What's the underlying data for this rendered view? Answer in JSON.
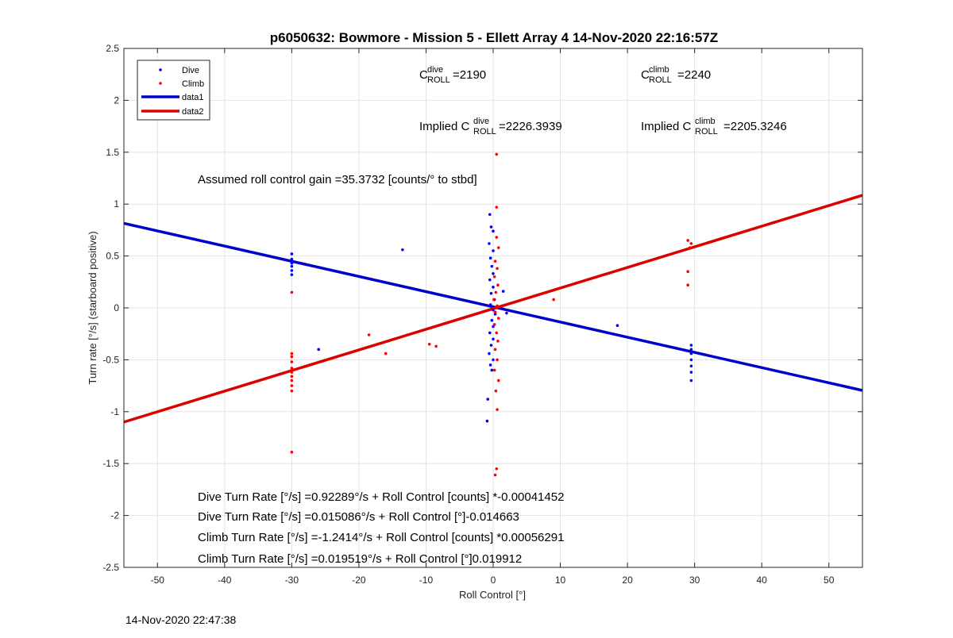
{
  "chart_data": {
    "type": "scatter",
    "title": "p6050632: Bowmore - Mission 5 - Ellett Array 4 14-Nov-2020 22:16:57Z",
    "xlabel": "Roll Control [°]",
    "ylabel": "Turn rate [°/s] (starboard positive)",
    "xlim": [
      -55,
      55
    ],
    "ylim": [
      -2.5,
      2.5
    ],
    "xticks": [
      -50,
      -40,
      -30,
      -20,
      -10,
      0,
      10,
      20,
      30,
      40,
      50
    ],
    "yticks": [
      -2.5,
      -2,
      -1.5,
      -1,
      -0.5,
      0,
      0.5,
      1,
      1.5,
      2,
      2.5
    ],
    "grid": true,
    "legend_position": "top-left",
    "legend": [
      "Dive",
      "Climb",
      "data1",
      "data2"
    ],
    "series": [
      {
        "name": "Dive",
        "kind": "points",
        "color": "#0000ff",
        "points": [
          [
            -30,
            0.52
          ],
          [
            -30,
            0.47
          ],
          [
            -30,
            0.43
          ],
          [
            -30,
            0.4
          ],
          [
            -30,
            0.36
          ],
          [
            -30,
            0.32
          ],
          [
            -26,
            -0.4
          ],
          [
            -13.5,
            0.56
          ],
          [
            -0.5,
            0.9
          ],
          [
            -0.3,
            0.78
          ],
          [
            0,
            0.74
          ],
          [
            -0.6,
            0.62
          ],
          [
            0,
            0.55
          ],
          [
            -0.4,
            0.48
          ],
          [
            -0.2,
            0.4
          ],
          [
            0,
            0.33
          ],
          [
            -0.5,
            0.27
          ],
          [
            0,
            0.2
          ],
          [
            -0.3,
            0.14
          ],
          [
            0.2,
            0.08
          ],
          [
            -0.4,
            0.03
          ],
          [
            0,
            -0.02
          ],
          [
            0.3,
            -0.06
          ],
          [
            -0.2,
            -0.12
          ],
          [
            0,
            -0.18
          ],
          [
            -0.5,
            -0.24
          ],
          [
            0,
            -0.3
          ],
          [
            -0.3,
            -0.36
          ],
          [
            -0.6,
            -0.44
          ],
          [
            0,
            -0.5
          ],
          [
            -0.4,
            -0.55
          ],
          [
            -0.2,
            -0.6
          ],
          [
            -0.8,
            -0.88
          ],
          [
            -0.9,
            -1.09
          ],
          [
            1.5,
            0.16
          ],
          [
            2,
            -0.05
          ],
          [
            18.5,
            -0.17
          ],
          [
            29.5,
            -0.36
          ],
          [
            29.5,
            -0.4
          ],
          [
            29.5,
            -0.44
          ],
          [
            29.5,
            -0.5
          ],
          [
            29.5,
            -0.56
          ],
          [
            29.5,
            -0.62
          ],
          [
            29.5,
            -0.7
          ]
        ]
      },
      {
        "name": "Climb",
        "kind": "points",
        "color": "#ff0000",
        "points": [
          [
            -30,
            0.15
          ],
          [
            -30,
            -0.44
          ],
          [
            -30,
            -0.47
          ],
          [
            -30,
            -0.52
          ],
          [
            -30,
            -0.58
          ],
          [
            -30,
            -0.62
          ],
          [
            -30,
            -0.66
          ],
          [
            -30,
            -0.7
          ],
          [
            -30,
            -0.75
          ],
          [
            -30,
            -0.8
          ],
          [
            -30,
            -1.39
          ],
          [
            -18.5,
            -0.26
          ],
          [
            -16,
            -0.44
          ],
          [
            -9.5,
            -0.35
          ],
          [
            -8.5,
            -0.37
          ],
          [
            0.5,
            1.48
          ],
          [
            0.5,
            0.97
          ],
          [
            0.5,
            0.68
          ],
          [
            0.8,
            0.58
          ],
          [
            0.3,
            0.45
          ],
          [
            0.6,
            0.38
          ],
          [
            0.2,
            0.3
          ],
          [
            0.7,
            0.22
          ],
          [
            0.4,
            0.15
          ],
          [
            0.1,
            0.08
          ],
          [
            0.6,
            0.02
          ],
          [
            0.3,
            -0.04
          ],
          [
            0.8,
            -0.1
          ],
          [
            0.2,
            -0.16
          ],
          [
            0.5,
            -0.24
          ],
          [
            0.7,
            -0.32
          ],
          [
            0.3,
            -0.4
          ],
          [
            0.6,
            -0.5
          ],
          [
            0.2,
            -0.6
          ],
          [
            0.8,
            -0.7
          ],
          [
            0.4,
            -0.8
          ],
          [
            0.6,
            -0.98
          ],
          [
            0.5,
            -1.55
          ],
          [
            0.3,
            -1.61
          ],
          [
            9,
            0.08
          ],
          [
            29,
            0.65
          ],
          [
            29.5,
            0.62
          ],
          [
            29.3,
            0.58
          ],
          [
            29,
            0.35
          ],
          [
            29,
            0.22
          ]
        ]
      },
      {
        "name": "data1",
        "kind": "line",
        "color": "#0000cc",
        "x": [
          -55,
          55
        ],
        "y": [
          0.815,
          -0.795
        ]
      },
      {
        "name": "data2",
        "kind": "line",
        "color": "#dd0000",
        "x": [
          -55,
          55
        ],
        "y": [
          -1.1,
          1.085
        ]
      }
    ],
    "annotations": [
      {
        "prefix": "C",
        "sup": "dive",
        "sub": "ROLL",
        "suffix": " =2190"
      },
      {
        "prefix": "C",
        "sup": "climb",
        "sub": "ROLL",
        "suffix": " =2240"
      },
      {
        "prefix": "Implied C",
        "sup": "dive",
        "sub": "ROLL",
        "suffix": " =2226.3939"
      },
      {
        "prefix": "Implied C",
        "sup": "climb",
        "sub": "ROLL",
        "suffix": " =2205.3246"
      },
      {
        "text": "Assumed roll control gain =35.3732 [counts/° to stbd]"
      },
      {
        "text": "Dive Turn Rate [°/s] =0.92289°/s + Roll Control [counts] *-0.00041452"
      },
      {
        "text": "Dive Turn Rate [°/s] =0.015086°/s + Roll Control [°]-0.014663"
      },
      {
        "text": "Climb Turn Rate [°/s] =-1.2414°/s + Roll Control [counts] *0.00056291"
      },
      {
        "text": "Climb Turn Rate [°/s] =0.019519°/s + Roll Control [°]0.019912"
      }
    ]
  },
  "footer": {
    "timestamp": "14-Nov-2020 22:47:38"
  }
}
